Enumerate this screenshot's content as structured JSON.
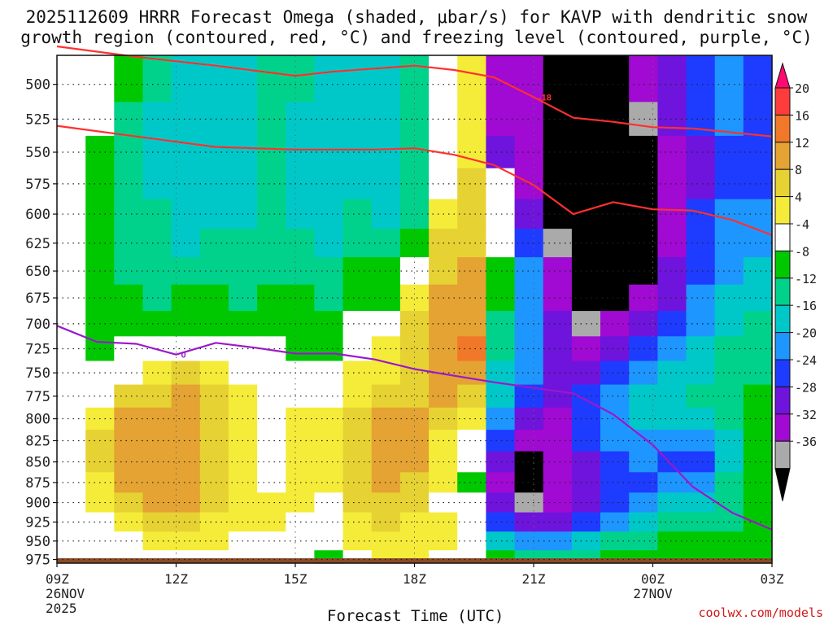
{
  "title": {
    "line1": "2025112609 HRRR Forecast Omega (shaded, μbar/s) for KAVP with dendritic snow",
    "line2": "growth region (contoured, red, °C) and freezing level (contoured, purple, °C)"
  },
  "credit": "coolwx.com/models",
  "chart_data": {
    "type": "heatmap",
    "xlabel": "Forecast Time (UTC)",
    "ylabel": "",
    "x_ticks": [
      {
        "label": "09Z",
        "sub": [
          "26NOV",
          "2025"
        ],
        "hour": 0
      },
      {
        "label": "12Z",
        "sub": [],
        "hour": 3
      },
      {
        "label": "15Z",
        "sub": [],
        "hour": 6
      },
      {
        "label": "18Z",
        "sub": [],
        "hour": 9
      },
      {
        "label": "21Z",
        "sub": [],
        "hour": 12
      },
      {
        "label": "00Z",
        "sub": [
          "27NOV"
        ],
        "hour": 15
      },
      {
        "label": "03Z",
        "sub": [],
        "hour": 18
      }
    ],
    "xlim": [
      0,
      18
    ],
    "y_ticks": [
      500,
      525,
      550,
      575,
      600,
      625,
      650,
      675,
      700,
      725,
      750,
      775,
      800,
      825,
      850,
      875,
      900,
      925,
      950,
      975
    ],
    "ylim": [
      480,
      980
    ],
    "y_scale": "log-pressure",
    "grid": true,
    "colorbar": {
      "levels": [
        "20",
        "16",
        "12",
        "8",
        "4",
        "-4",
        "-8",
        "-12",
        "-16",
        "-20",
        "-24",
        "-28",
        "-32",
        "-36"
      ],
      "colors": [
        "#ff0a6e",
        "#ff3c3c",
        "#f07828",
        "#e4a332",
        "#e6d232",
        "#f5ec3a",
        "#ffffff",
        "#00c800",
        "#00d28c",
        "#00c8c8",
        "#1e96ff",
        "#1e3cff",
        "#6e14dc",
        "#a00ad2",
        "#aaaaaa",
        "#000000"
      ]
    },
    "omega_rows_pressure": [
      500,
      525,
      550,
      575,
      600,
      625,
      650,
      675,
      700,
      725,
      750,
      775,
      800,
      825,
      850,
      875,
      900,
      925,
      950,
      975
    ],
    "omega_field": [
      [
        0,
        -2,
        -8,
        -12,
        -13,
        -13,
        -13,
        -9,
        -12,
        -14,
        -13,
        -16,
        -10,
        -4,
        6,
        -32,
        -32,
        -36,
        -36,
        -36,
        -32,
        -28,
        -24,
        -20,
        -24
      ],
      [
        0,
        -4,
        -9,
        -14,
        -14,
        -14,
        -14,
        -12,
        -14,
        -14,
        -14,
        -16,
        -12,
        -4,
        6,
        -30,
        -32,
        -36,
        -36,
        -36,
        -34,
        -28,
        -24,
        -20,
        -24
      ],
      [
        0,
        -6,
        -10,
        -14,
        -14,
        -14,
        -14,
        -12,
        -14,
        -14,
        -14,
        -16,
        -12,
        -4,
        7,
        -26,
        -30,
        -36,
        -36,
        -36,
        -36,
        -30,
        -26,
        -22,
        -22
      ],
      [
        0,
        -6,
        -10,
        -14,
        -15,
        -14,
        -14,
        -12,
        -14,
        -14,
        -14,
        -15,
        -12,
        -2,
        8,
        -4,
        -30,
        -36,
        -36,
        -36,
        -36,
        -32,
        -26,
        -22,
        -22
      ],
      [
        0,
        -6,
        -10,
        -12,
        -14,
        -14,
        -14,
        -12,
        -13,
        -14,
        -12,
        -13,
        -10,
        4,
        9,
        -2,
        -26,
        -36,
        -36,
        -36,
        -36,
        -32,
        -24,
        -20,
        -20
      ],
      [
        0,
        -6,
        -10,
        -12,
        -13,
        -12,
        -12,
        -11,
        -12,
        -13,
        -10,
        -10,
        -6,
        8,
        10,
        -4,
        -24,
        -34,
        -36,
        -36,
        -36,
        -30,
        -24,
        -18,
        -18
      ],
      [
        0,
        -6,
        -9,
        -11,
        -10,
        -10,
        -12,
        -10,
        -10,
        -12,
        -8,
        -8,
        -2,
        10,
        12,
        -6,
        -20,
        -32,
        -36,
        -36,
        -36,
        -28,
        -22,
        -18,
        -16
      ],
      [
        0,
        -6,
        -8,
        -10,
        -8,
        -8,
        -10,
        -8,
        -8,
        -10,
        -6,
        -6,
        4,
        12,
        13,
        -8,
        -20,
        -30,
        -36,
        -36,
        -32,
        -26,
        -20,
        -16,
        -14
      ],
      [
        0,
        -6,
        -7,
        -8,
        -6,
        -6,
        -8,
        -6,
        -7,
        -8,
        -4,
        2,
        8,
        13,
        14,
        -10,
        -20,
        -28,
        -34,
        -30,
        -26,
        -22,
        -18,
        -14,
        -12
      ],
      [
        -2,
        -5,
        -4,
        -2,
        0,
        2,
        -4,
        -4,
        -5,
        -6,
        0,
        5,
        10,
        14,
        16,
        -12,
        -20,
        -28,
        -30,
        -26,
        -22,
        -18,
        -16,
        -12,
        -10
      ],
      [
        -2,
        -2,
        2,
        6,
        8,
        6,
        2,
        0,
        -2,
        -2,
        4,
        7,
        10,
        12,
        14,
        -14,
        -20,
        -26,
        -26,
        -22,
        -18,
        -16,
        -14,
        -12,
        -10
      ],
      [
        0,
        2,
        8,
        11,
        12,
        9,
        4,
        0,
        2,
        2,
        6,
        10,
        11,
        12,
        10,
        -16,
        -22,
        -26,
        -22,
        -18,
        -16,
        -14,
        -12,
        -10,
        -8
      ],
      [
        0,
        6,
        12,
        14,
        14,
        10,
        5,
        2,
        4,
        4,
        8,
        12,
        12,
        10,
        6,
        -20,
        -26,
        -30,
        -22,
        -18,
        -16,
        -16,
        -14,
        -12,
        -8
      ],
      [
        0,
        8,
        14,
        15,
        14,
        10,
        6,
        2,
        6,
        6,
        10,
        13,
        12,
        6,
        2,
        -24,
        -32,
        -30,
        -24,
        -20,
        -18,
        -20,
        -20,
        -14,
        -8
      ],
      [
        0,
        8,
        14,
        15,
        14,
        10,
        6,
        2,
        6,
        6,
        10,
        13,
        12,
        4,
        0,
        -28,
        -36,
        -32,
        -26,
        -22,
        -20,
        -22,
        -22,
        -14,
        -8
      ],
      [
        0,
        6,
        13,
        14,
        13,
        10,
        5,
        2,
        4,
        4,
        10,
        12,
        10,
        4,
        -8,
        -30,
        -36,
        -32,
        -28,
        -24,
        -22,
        -20,
        -18,
        -12,
        -8
      ],
      [
        0,
        4,
        10,
        12,
        12,
        8,
        4,
        4,
        4,
        2,
        8,
        10,
        8,
        2,
        -4,
        -28,
        -34,
        -30,
        -28,
        -24,
        -20,
        -16,
        -14,
        -10,
        -8
      ],
      [
        0,
        2,
        6,
        8,
        8,
        6,
        4,
        4,
        2,
        2,
        6,
        8,
        6,
        4,
        0,
        -22,
        -28,
        -28,
        -24,
        -20,
        -16,
        -12,
        -10,
        -10,
        -8
      ],
      [
        0,
        0,
        2,
        4,
        4,
        4,
        2,
        2,
        2,
        2,
        4,
        6,
        6,
        4,
        2,
        -14,
        -20,
        -18,
        -16,
        -12,
        -10,
        -8,
        -8,
        -8,
        -8
      ],
      [
        0,
        0,
        0,
        2,
        2,
        2,
        0,
        0,
        0,
        -6,
        2,
        4,
        4,
        2,
        2,
        -8,
        -12,
        -12,
        -10,
        -8,
        -8,
        -8,
        -8,
        -8,
        -8
      ]
    ],
    "contours": [
      {
        "color": "#ff3030",
        "label": "-18",
        "points": [
          [
            0.0,
            474
          ],
          [
            2.0,
            481
          ],
          [
            4.0,
            487
          ],
          [
            6.0,
            494
          ],
          [
            7.0,
            491
          ],
          [
            9.0,
            487
          ],
          [
            10.0,
            490
          ],
          [
            11.0,
            495
          ],
          [
            12.0,
            509
          ],
          [
            13.0,
            524
          ],
          [
            14.0,
            527
          ],
          [
            15.0,
            531
          ],
          [
            16.0,
            532
          ],
          [
            17.0,
            535
          ],
          [
            18.0,
            538
          ]
        ]
      },
      {
        "color": "#ff3030",
        "label": "",
        "points": [
          [
            0.0,
            530
          ],
          [
            2.0,
            538
          ],
          [
            4.0,
            546
          ],
          [
            6.0,
            548
          ],
          [
            8.0,
            548
          ],
          [
            9.0,
            547
          ],
          [
            10.0,
            552
          ],
          [
            11.0,
            560
          ],
          [
            12.0,
            576
          ],
          [
            13.0,
            600
          ],
          [
            14.0,
            590
          ],
          [
            15.0,
            596
          ],
          [
            16.0,
            597
          ],
          [
            17.0,
            605
          ],
          [
            18.0,
            618
          ]
        ]
      },
      {
        "color": "#9a18cc",
        "label": "0",
        "points": [
          [
            0.0,
            702
          ],
          [
            1.0,
            718
          ],
          [
            2.0,
            720
          ],
          [
            3.0,
            731
          ],
          [
            4.0,
            719
          ],
          [
            5.0,
            724
          ],
          [
            6.0,
            730
          ],
          [
            7.0,
            730
          ],
          [
            8.0,
            736
          ],
          [
            9.0,
            746
          ],
          [
            10.0,
            753
          ],
          [
            11.0,
            760
          ],
          [
            12.0,
            766
          ],
          [
            13.0,
            772
          ],
          [
            14.0,
            795
          ],
          [
            15.0,
            830
          ],
          [
            16.0,
            880
          ],
          [
            17.0,
            913
          ],
          [
            18.0,
            935
          ]
        ]
      }
    ]
  }
}
